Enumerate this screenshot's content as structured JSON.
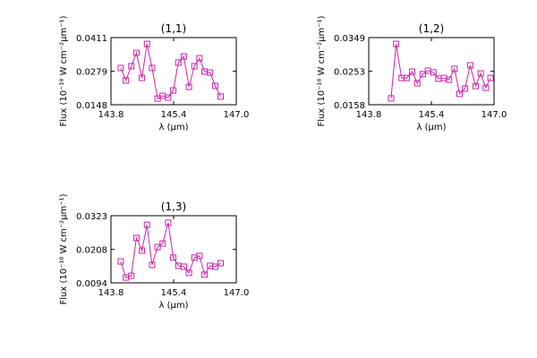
{
  "chart_data": [
    {
      "type": "line",
      "title": "(1,1)",
      "xlabel": "λ (μm)",
      "ylabel": "Flux (10⁻¹⁸ W cm⁻²μm⁻¹)",
      "color": "#cc22aa",
      "marker": "square",
      "x": [
        144.05,
        144.18,
        144.32,
        144.45,
        144.59,
        144.72,
        144.85,
        144.99,
        145.12,
        145.26,
        145.39,
        145.52,
        145.66,
        145.79,
        145.93,
        146.06,
        146.19,
        146.33,
        146.46,
        146.6
      ],
      "values": [
        0.0292,
        0.0243,
        0.0299,
        0.0351,
        0.0253,
        0.0386,
        0.0292,
        0.0172,
        0.0183,
        0.0176,
        0.0204,
        0.0313,
        0.0337,
        0.0218,
        0.0299,
        0.033,
        0.0278,
        0.0274,
        0.0222,
        0.018
      ],
      "xlim": [
        143.8,
        147.0
      ],
      "xticks": [
        143.8,
        145.4,
        {
          "value": 147.0,
          "label": "147.0"
        }
      ],
      "ylim": [
        0.0148,
        0.0411
      ],
      "yticks": [
        0.0148,
        0.0279,
        0.0411
      ]
    },
    {
      "type": "line",
      "title": "(1,2)",
      "xlabel": "λ (μm)",
      "ylabel": "Flux (10⁻¹⁸ W cm⁻²μm⁻¹)",
      "color": "#cc22aa",
      "marker": "square",
      "x": [
        144.37,
        144.5,
        144.64,
        144.77,
        144.91,
        145.04,
        145.18,
        145.31,
        145.45,
        145.58,
        145.72,
        145.85,
        145.99,
        146.12,
        146.26,
        146.39,
        146.53,
        146.66,
        146.79,
        146.91
      ],
      "values": [
        0.0176,
        0.0331,
        0.0234,
        0.0234,
        0.0252,
        0.0219,
        0.0245,
        0.0255,
        0.025,
        0.0232,
        0.0234,
        0.0229,
        0.026,
        0.0189,
        0.0204,
        0.027,
        0.0211,
        0.0247,
        0.0206,
        0.0234
      ],
      "xlim": [
        143.8,
        147.0
      ],
      "xticks": [
        143.8,
        145.4,
        {
          "value": 147.0,
          "label": "147.0"
        }
      ],
      "ylim": [
        0.0158,
        0.0349
      ],
      "yticks": [
        0.0158,
        0.0253,
        0.0349
      ]
    },
    {
      "type": "line",
      "title": "(1,3)",
      "xlabel": "λ (μm)",
      "ylabel": "Flux (10⁻¹⁸ W cm⁻²μm⁻¹)",
      "color": "#cc22aa",
      "marker": "square",
      "x": [
        144.05,
        144.18,
        144.32,
        144.45,
        144.59,
        144.72,
        144.85,
        144.99,
        145.12,
        145.26,
        145.39,
        145.52,
        145.66,
        145.79,
        145.93,
        146.06,
        146.19,
        146.33,
        146.46,
        146.6
      ],
      "values": [
        0.0167,
        0.0112,
        0.0118,
        0.0247,
        0.0204,
        0.0292,
        0.0155,
        0.0216,
        0.0228,
        0.0299,
        0.018,
        0.0152,
        0.0149,
        0.0128,
        0.018,
        0.0186,
        0.0122,
        0.0152,
        0.0149,
        0.0161
      ],
      "xlim": [
        143.8,
        147.0
      ],
      "xticks": [
        143.8,
        145.4,
        {
          "value": 147.0,
          "label": "147.0"
        }
      ],
      "ylim": [
        0.0094,
        0.0323
      ],
      "yticks": [
        0.0094,
        0.0208,
        0.0323
      ]
    }
  ]
}
